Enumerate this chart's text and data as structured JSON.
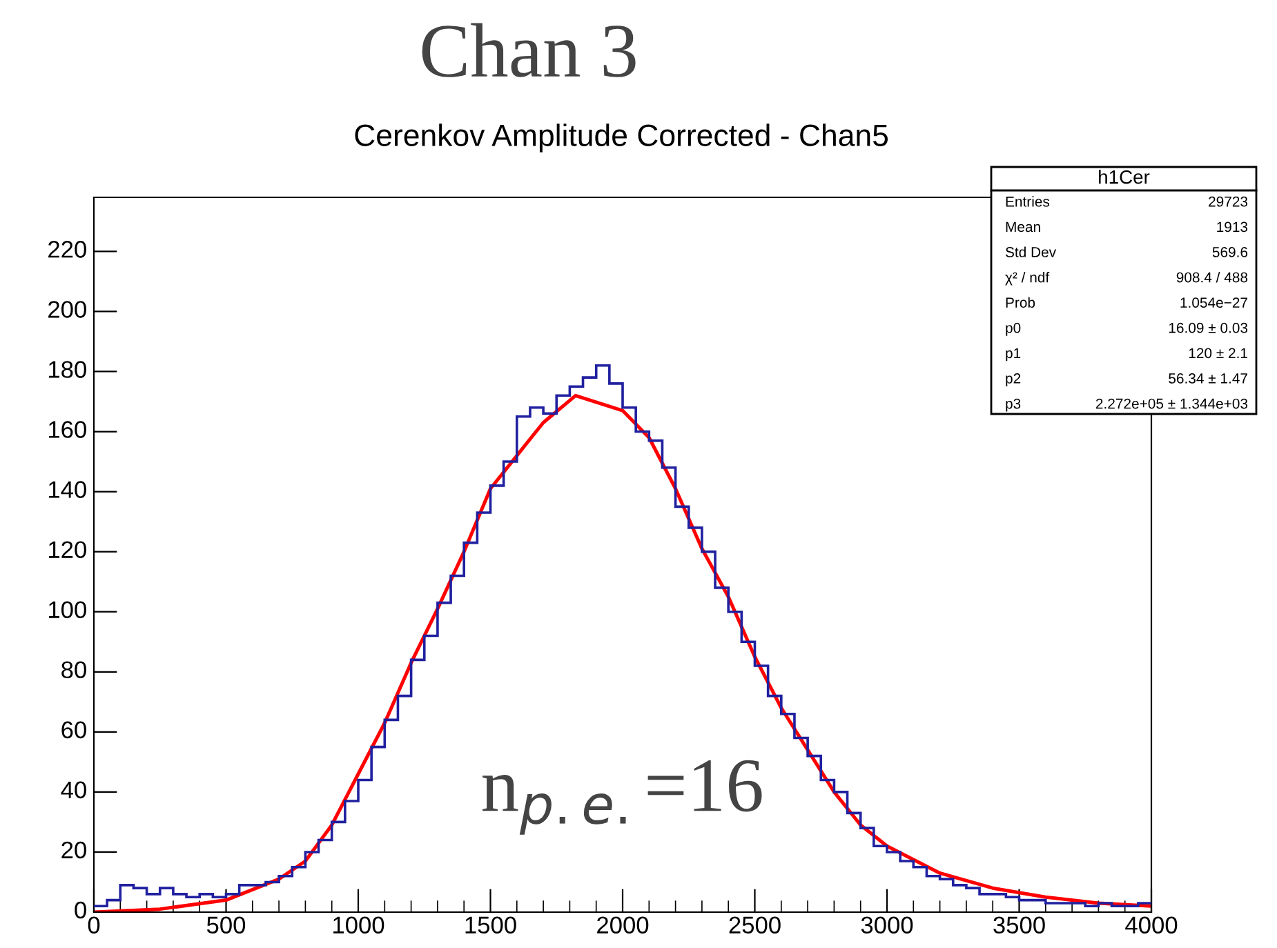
{
  "chart_data": {
    "type": "histogram",
    "title": "Chan 3",
    "subtitle": "Cerenkov Amplitude Corrected - Chan5",
    "bins": [
      0,
      50,
      100,
      150,
      200,
      250,
      300,
      350,
      400,
      450,
      500,
      550,
      600,
      650,
      700,
      750,
      800,
      850,
      900,
      950,
      1000,
      1050,
      1100,
      1150,
      1200,
      1250,
      1300,
      1350,
      1400,
      1450,
      1500,
      1550,
      1600,
      1650,
      1700,
      1750,
      1800,
      1850,
      1900,
      1950,
      2000,
      2050,
      2100,
      2150,
      2200,
      2250,
      2300,
      2350,
      2400,
      2450,
      2500,
      2550,
      2600,
      2650,
      2700,
      2750,
      2800,
      2850,
      2900,
      2950,
      3000,
      3050,
      3100,
      3150,
      3200,
      3250,
      3300,
      3350,
      3400,
      3450,
      3500,
      3550,
      3600,
      3650,
      3700,
      3750,
      3800,
      3850,
      3900,
      3950,
      4000
    ],
    "series": [
      {
        "type": "histogram",
        "color": "#2020a0",
        "values": [
          2,
          4,
          9,
          8,
          6,
          8,
          6,
          5,
          6,
          5,
          6,
          9,
          9,
          10,
          12,
          15,
          20,
          24,
          30,
          37,
          44,
          55,
          64,
          72,
          84,
          92,
          103,
          112,
          123,
          133,
          142,
          150,
          165,
          168,
          166,
          172,
          175,
          178,
          182,
          176,
          168,
          160,
          157,
          148,
          135,
          128,
          120,
          108,
          100,
          90,
          82,
          72,
          66,
          58,
          52,
          44,
          40,
          33,
          28,
          22,
          20,
          17,
          15,
          12,
          11,
          9,
          8,
          6,
          6,
          5,
          4,
          4,
          3,
          3,
          3,
          2,
          3,
          2,
          2,
          3
        ]
      },
      {
        "type": "line",
        "color": "#ff0000",
        "x": [
          0,
          250,
          500,
          700,
          800,
          900,
          1000,
          1100,
          1200,
          1300,
          1400,
          1500,
          1600,
          1700,
          1822,
          2000,
          2100,
          2200,
          2300,
          2400,
          2500,
          2600,
          2700,
          2800,
          2900,
          3000,
          3200,
          3400,
          3600,
          3800,
          4000
        ],
        "values": [
          0,
          1,
          4,
          11,
          17,
          29,
          46,
          63,
          83,
          101,
          120,
          141,
          152,
          163,
          172,
          167,
          158,
          141,
          121,
          105,
          85,
          68,
          54,
          40,
          29,
          22,
          13,
          8,
          5,
          3,
          2
        ]
      }
    ],
    "xlim": [
      0,
      4000
    ],
    "xticks": [
      0,
      500,
      1000,
      1500,
      2000,
      2500,
      3000,
      3500,
      4000
    ],
    "ylim": [
      0,
      238
    ],
    "yticks": [
      0,
      20,
      40,
      60,
      80,
      100,
      120,
      140,
      160,
      180,
      200,
      220
    ],
    "grid": false,
    "legend": false,
    "annotations": [
      "n$_{p.e.}$=16",
      "h1Cer",
      "Entries",
      "29723",
      "Mean",
      "1913",
      "Std Dev",
      "569.6",
      "χ² / ndf",
      "908.4 / 488",
      "Prob",
      "1.054e−27",
      "p0",
      "16.09 ± 0.03",
      "p1",
      "120 ± 2.1",
      "p2",
      "56.34 ± 1.47",
      "p3",
      "2.272e+05 ± 1.344e+03"
    ]
  }
}
